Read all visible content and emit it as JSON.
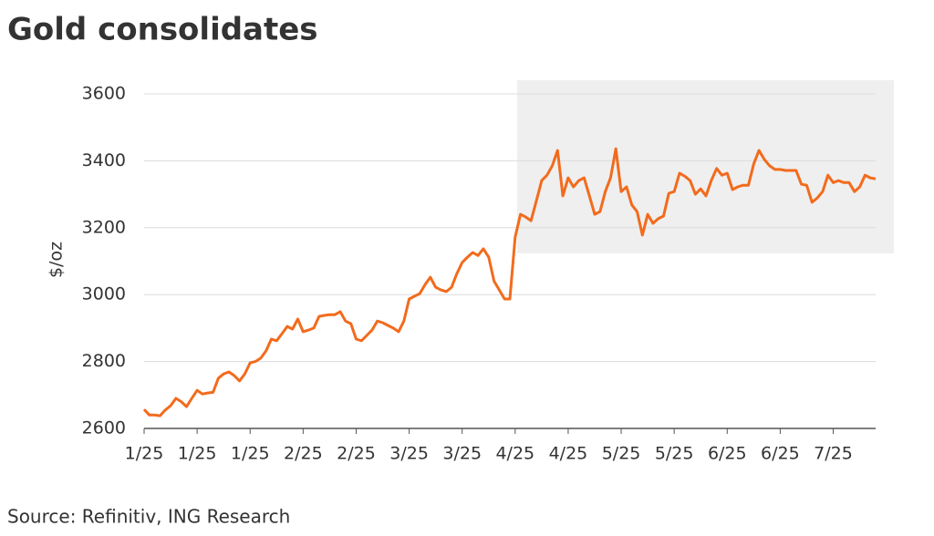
{
  "chart_data": {
    "type": "line",
    "title": "Gold consolidates",
    "ylabel": "$/oz",
    "source": "Source: Refinitiv, ING Research",
    "categories": [
      "1/25",
      null,
      null,
      null,
      null,
      null,
      null,
      null,
      null,
      null,
      "1/25",
      null,
      null,
      null,
      null,
      null,
      null,
      null,
      null,
      null,
      "1/25",
      null,
      null,
      null,
      null,
      null,
      null,
      null,
      null,
      null,
      "2/25",
      null,
      null,
      null,
      null,
      null,
      null,
      null,
      null,
      null,
      "2/25",
      null,
      null,
      null,
      null,
      null,
      null,
      null,
      null,
      null,
      "3/25",
      null,
      null,
      null,
      null,
      null,
      null,
      null,
      null,
      null,
      "3/25",
      null,
      null,
      null,
      null,
      null,
      null,
      null,
      null,
      null,
      "4/25",
      null,
      null,
      null,
      null,
      null,
      null,
      null,
      null,
      null,
      "4/25",
      null,
      null,
      null,
      null,
      null,
      null,
      null,
      null,
      null,
      "5/25",
      null,
      null,
      null,
      null,
      null,
      null,
      null,
      null,
      null,
      "5/25",
      null,
      null,
      null,
      null,
      null,
      null,
      null,
      null,
      null,
      "6/25",
      null,
      null,
      null,
      null,
      null,
      null,
      null,
      null,
      null,
      "6/25",
      null,
      null,
      null,
      null,
      null,
      null,
      null,
      null,
      null,
      "7/25",
      null,
      null,
      null,
      null,
      null,
      null,
      null,
      null
    ],
    "series": [
      {
        "name": "Gold",
        "color": "#f26b1d",
        "values": [
          2657,
          2640,
          2640,
          2638,
          2655,
          2668,
          2690,
          2680,
          2665,
          2690,
          2714,
          2703,
          2706,
          2708,
          2750,
          2763,
          2769,
          2758,
          2742,
          2763,
          2796,
          2800,
          2810,
          2832,
          2867,
          2862,
          2883,
          2905,
          2897,
          2927,
          2889,
          2894,
          2900,
          2935,
          2938,
          2940,
          2940,
          2949,
          2921,
          2913,
          2867,
          2862,
          2878,
          2894,
          2921,
          2916,
          2908,
          2900,
          2889,
          2921,
          2987,
          2995,
          3003,
          3030,
          3052,
          3022,
          3014,
          3009,
          3022,
          3063,
          3096,
          3112,
          3126,
          3117,
          3137,
          3112,
          3041,
          3014,
          2987,
          2987,
          3172,
          3240,
          3232,
          3221,
          3281,
          3341,
          3357,
          3385,
          3431,
          3295,
          3349,
          3322,
          3341,
          3349,
          3295,
          3240,
          3248,
          3308,
          3349,
          3436,
          3308,
          3322,
          3268,
          3248,
          3178,
          3240,
          3213,
          3227,
          3235,
          3303,
          3308,
          3363,
          3354,
          3341,
          3300,
          3316,
          3295,
          3341,
          3377,
          3357,
          3363,
          3314,
          3322,
          3327,
          3327,
          3390,
          3431,
          3404,
          3385,
          3374,
          3374,
          3371,
          3371,
          3371,
          3330,
          3327,
          3276,
          3289,
          3308,
          3357,
          3335,
          3341,
          3335,
          3335,
          3308,
          3322,
          3357,
          3349,
          3346
        ]
      }
    ],
    "ylim": [
      2600,
      3600
    ],
    "yticks": [
      2600,
      2800,
      3000,
      3200,
      3400,
      3600
    ],
    "grid": true
  }
}
